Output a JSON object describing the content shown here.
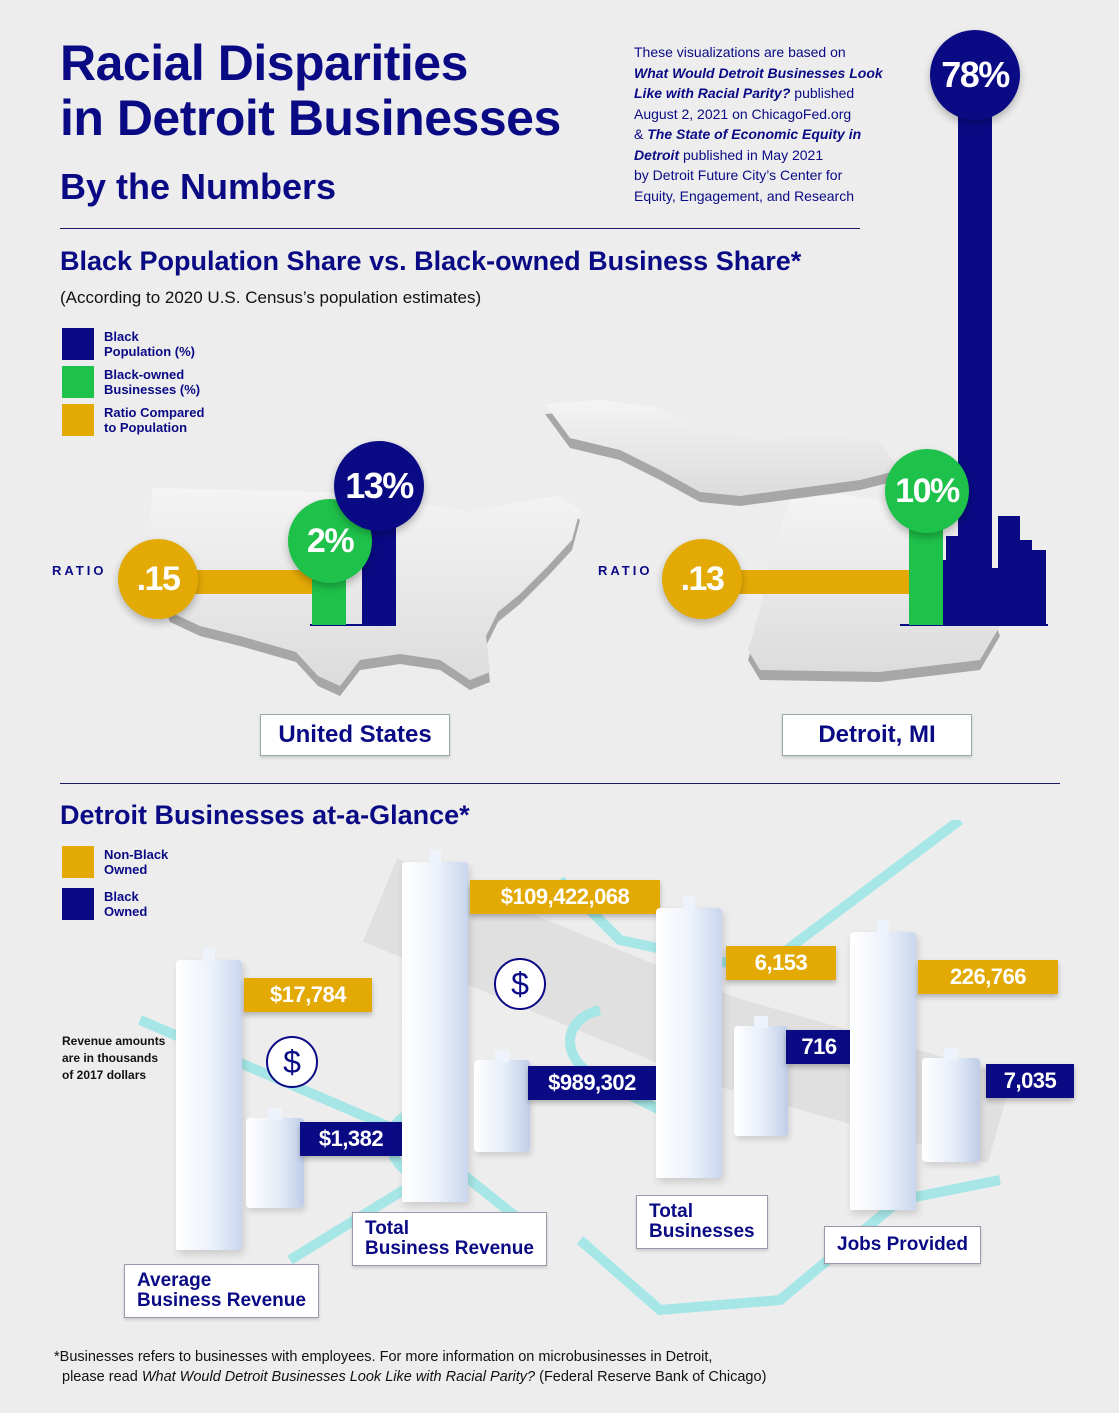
{
  "header": {
    "title_line1": "Racial Disparities",
    "title_line2": "in Detroit Businesses",
    "subtitle": "By the Numbers",
    "source_lines": [
      {
        "text": "These visualizations are based on",
        "italic": false
      },
      {
        "text": "What Would Detroit Businesses Look",
        "italic": true
      },
      {
        "text": "Like with Racial Parity?",
        "italic": true,
        "suffix": " published"
      },
      {
        "text": "August 2, 2021 on ChicagoFed.org",
        "italic": false
      },
      {
        "text": "& ",
        "italic": false,
        "italic_part": "The State of Economic Equity in"
      },
      {
        "text": "Detroit",
        "italic": true,
        "suffix": " published in May 2021"
      },
      {
        "text": "by Detroit Future City’s Center for",
        "italic": false
      },
      {
        "text": "Equity, Engagement, and Research",
        "italic": false
      }
    ]
  },
  "section1": {
    "title": "Black Population Share vs. Black-owned Business Share*",
    "subtitle": "(According to 2020 U.S. Census’s population estimates)",
    "legend": [
      {
        "label_line1": "Black",
        "label_line2": "Population (%)",
        "color": "#0a0a85"
      },
      {
        "label_line1": "Black-owned",
        "label_line2": "Businesses (%)",
        "color": "#1ec14a"
      },
      {
        "label_line1": "Ratio Compared",
        "label_line2": "to Population",
        "color": "#e3a905"
      }
    ],
    "ratio_word": "RATIO"
  },
  "section2": {
    "title": "Detroit Businesses at-a-Glance*",
    "legend": [
      {
        "label_line1": "Non-Black",
        "label_line2": "Owned",
        "color": "#e3a905"
      },
      {
        "label_line1": "Black",
        "label_line2": "Owned",
        "color": "#0a0a85"
      }
    ],
    "note_lines": [
      "Revenue amounts",
      "are in thousands",
      "of 2017 dollars"
    ],
    "dollar_icon": "$"
  },
  "footnote": {
    "line1": "*Businesses refers to businesses with employees. For more information on microbusinesses in Detroit,",
    "line2_prefix": "please read ",
    "line2_italic": "What Would Detroit Businesses Look Like with Racial Parity?",
    "line2_suffix": " (Federal Reserve Bank of Chicago)"
  },
  "colors": {
    "navy": "#0a0a85",
    "green": "#1ec14a",
    "gold": "#e3a905",
    "teal": "#a6e6e6"
  },
  "chart_data": [
    {
      "type": "bar",
      "categories": [
        "United States",
        "Detroit, MI"
      ],
      "series": [
        {
          "name": "Black Population (%)",
          "values": [
            13,
            78
          ],
          "labels": [
            "13%",
            "78%"
          ]
        },
        {
          "name": "Black-owned Businesses (%)",
          "values": [
            2,
            10
          ],
          "labels": [
            "2%",
            "10%"
          ]
        }
      ],
      "ratios": [
        0.15,
        0.13
      ],
      "ratio_labels": [
        ".15",
        ".13"
      ]
    },
    {
      "type": "bar",
      "categories": [
        {
          "line1": "Average",
          "line2": "Business Revenue"
        },
        {
          "line1": "Total",
          "line2": "Business Revenue"
        },
        {
          "line1": "Total",
          "line2": "Businesses"
        },
        {
          "line1": "Jobs Provided",
          "line2": ""
        }
      ],
      "series": [
        {
          "name": "Non-Black Owned",
          "values": [
            17784,
            109422068,
            6153,
            226766
          ],
          "labels": [
            "$17,784",
            "$109,422,068",
            "6,153",
            "226,766"
          ]
        },
        {
          "name": "Black Owned",
          "values": [
            1382,
            989302,
            716,
            7035
          ],
          "labels": [
            "$1,382",
            "$989,302",
            "716",
            "7,035"
          ]
        }
      ]
    }
  ]
}
